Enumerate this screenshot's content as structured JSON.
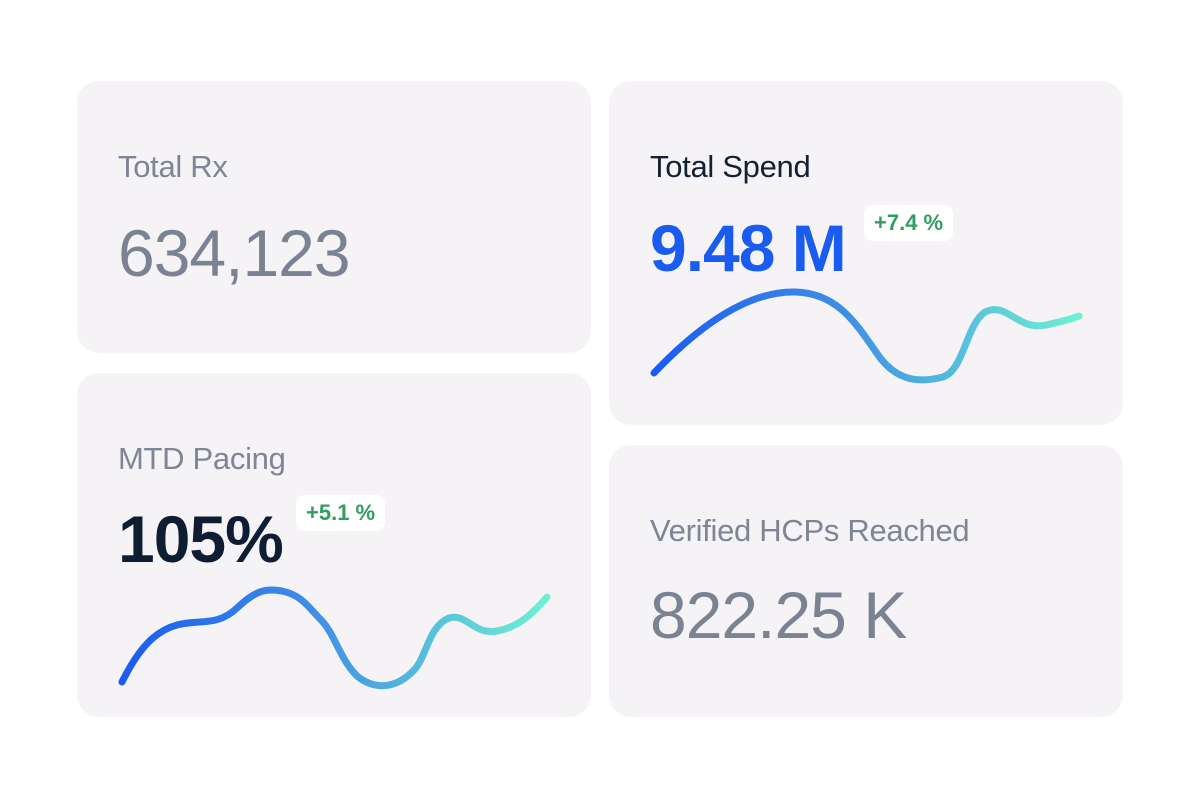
{
  "cards": {
    "total_rx": {
      "label": "Total Rx",
      "value": "634,123"
    },
    "mtd_pacing": {
      "label": "MTD Pacing",
      "value": "105%",
      "change": "+5.1 %"
    },
    "total_spend": {
      "label": "Total Spend",
      "value": "9.48 M",
      "change": "+7.4 %"
    },
    "verified_hcps": {
      "label": "Verified HCPs Reached",
      "value": "822.25 K"
    }
  },
  "colors": {
    "card_background": "#f5f3f6",
    "accent_blue": "#1a5cf0",
    "positive_green": "#2f9e5f",
    "sparkline_start": "#1a5cf0",
    "sparkline_end": "#6ff0d2"
  }
}
